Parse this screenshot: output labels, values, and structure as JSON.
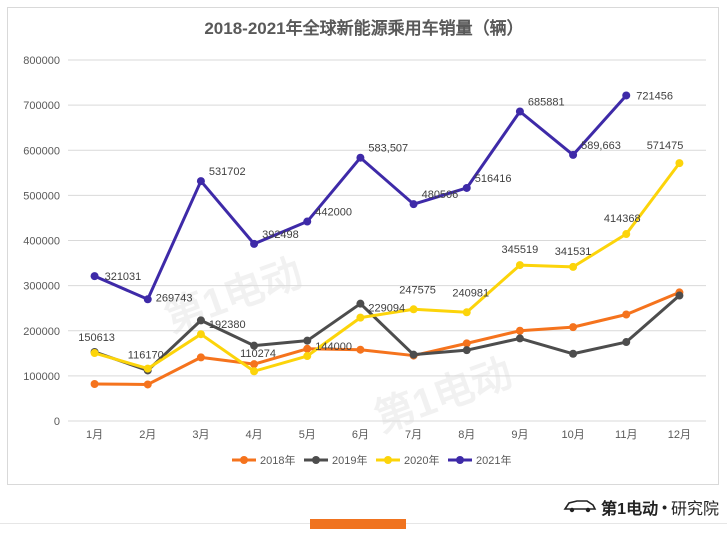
{
  "footer": {
    "brand_logo_text": "第1电动",
    "separator": "•",
    "suffix": "研究院"
  },
  "watermark": {
    "text": "第1电动",
    "url_text": "www.D1EV.com"
  },
  "chart_data": {
    "type": "line",
    "title": "2018-2021年全球新能源乘用车销量（辆）",
    "categories": [
      "1月",
      "2月",
      "3月",
      "4月",
      "5月",
      "6月",
      "7月",
      "8月",
      "9月",
      "10月",
      "11月",
      "12月"
    ],
    "ylim": [
      0,
      800000
    ],
    "yticks": [
      "0",
      "100000",
      "200000",
      "300000",
      "400000",
      "500000",
      "600000",
      "700000",
      "800000"
    ],
    "grid": true,
    "legend_position": "bottom",
    "series": [
      {
        "name": "2018年",
        "color": "#f5731d",
        "values": [
          82000,
          81000,
          141000,
          126000,
          160000,
          158000,
          145000,
          172000,
          200000,
          208000,
          236000,
          285000
        ],
        "labels": []
      },
      {
        "name": "2019年",
        "color": "#4d4d4d",
        "values": [
          153000,
          112000,
          223000,
          167000,
          178000,
          260000,
          147000,
          157000,
          183000,
          149000,
          175000,
          278000
        ],
        "labels": []
      },
      {
        "name": "2020年",
        "color": "#fcd40a",
        "values": [
          150613,
          116170,
          192380,
          110274,
          144000,
          229094,
          247575,
          240981,
          345519,
          341531,
          414368,
          571475
        ],
        "labels": [
          "150613",
          "116170",
          "192380",
          "110274",
          "144000",
          "229094",
          "247575",
          "240981",
          "345519",
          "341531",
          "414368",
          "571475"
        ]
      },
      {
        "name": "2021年",
        "color": "#3e2aa8",
        "values": [
          321031,
          269743,
          531702,
          392498,
          442000,
          583507,
          480506,
          516416,
          685881,
          589663,
          721456,
          null
        ],
        "labels": [
          "321031",
          "269743",
          "531702",
          "392498",
          "442000",
          "583,507",
          "480506",
          "516416",
          "685881",
          "589,663",
          "721456",
          ""
        ]
      }
    ]
  }
}
